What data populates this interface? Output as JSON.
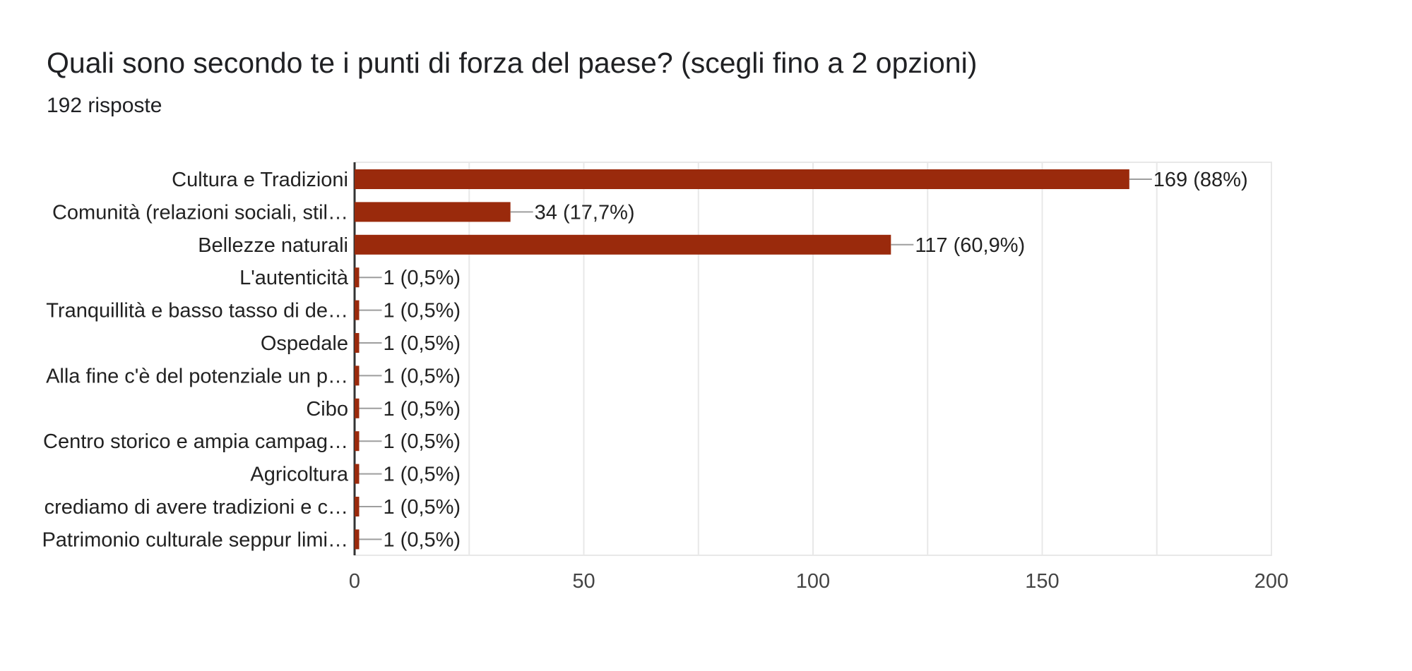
{
  "header": {
    "title": "Quali sono secondo te i punti di forza del paese? (scegli fino a 2 opzioni)",
    "responses": "192 risposte"
  },
  "colors": {
    "bar": "#9a2a0c",
    "grid": "#e8e8e8",
    "axis": "#333333",
    "connector": "#9e9e9e"
  },
  "chart_data": {
    "type": "bar",
    "orientation": "horizontal",
    "title": "Quali sono secondo te i punti di forza del paese? (scegli fino a 2 opzioni)",
    "subtitle": "192 risposte",
    "xlabel": "",
    "ylabel": "",
    "xlim": [
      0,
      200
    ],
    "ticks": [
      0,
      50,
      100,
      150,
      200
    ],
    "tick_labels": [
      "0",
      "50",
      "100",
      "150",
      "200"
    ],
    "grid": true,
    "legend": "none",
    "categories": [
      "Cultura e Tradizioni",
      "Comunità (relazioni sociali, stil…",
      "Bellezze naturali",
      "L'autenticità",
      "Tranquillità e basso tasso di de…",
      "Ospedale",
      "Alla fine c'è del potenziale un p…",
      "Cibo",
      "Centro storico e ampia campag…",
      "Agricoltura",
      "crediamo di avere tradizioni e c…",
      "Patrimonio culturale seppur limi…"
    ],
    "values": [
      169,
      34,
      117,
      1,
      1,
      1,
      1,
      1,
      1,
      1,
      1,
      1
    ],
    "value_labels": [
      "169 (88%)",
      "34 (17,7%)",
      "117 (60,9%)",
      "1 (0,5%)",
      "1 (0,5%)",
      "1 (0,5%)",
      "1 (0,5%)",
      "1 (0,5%)",
      "1 (0,5%)",
      "1 (0,5%)",
      "1 (0,5%)",
      "1 (0,5%)"
    ]
  }
}
